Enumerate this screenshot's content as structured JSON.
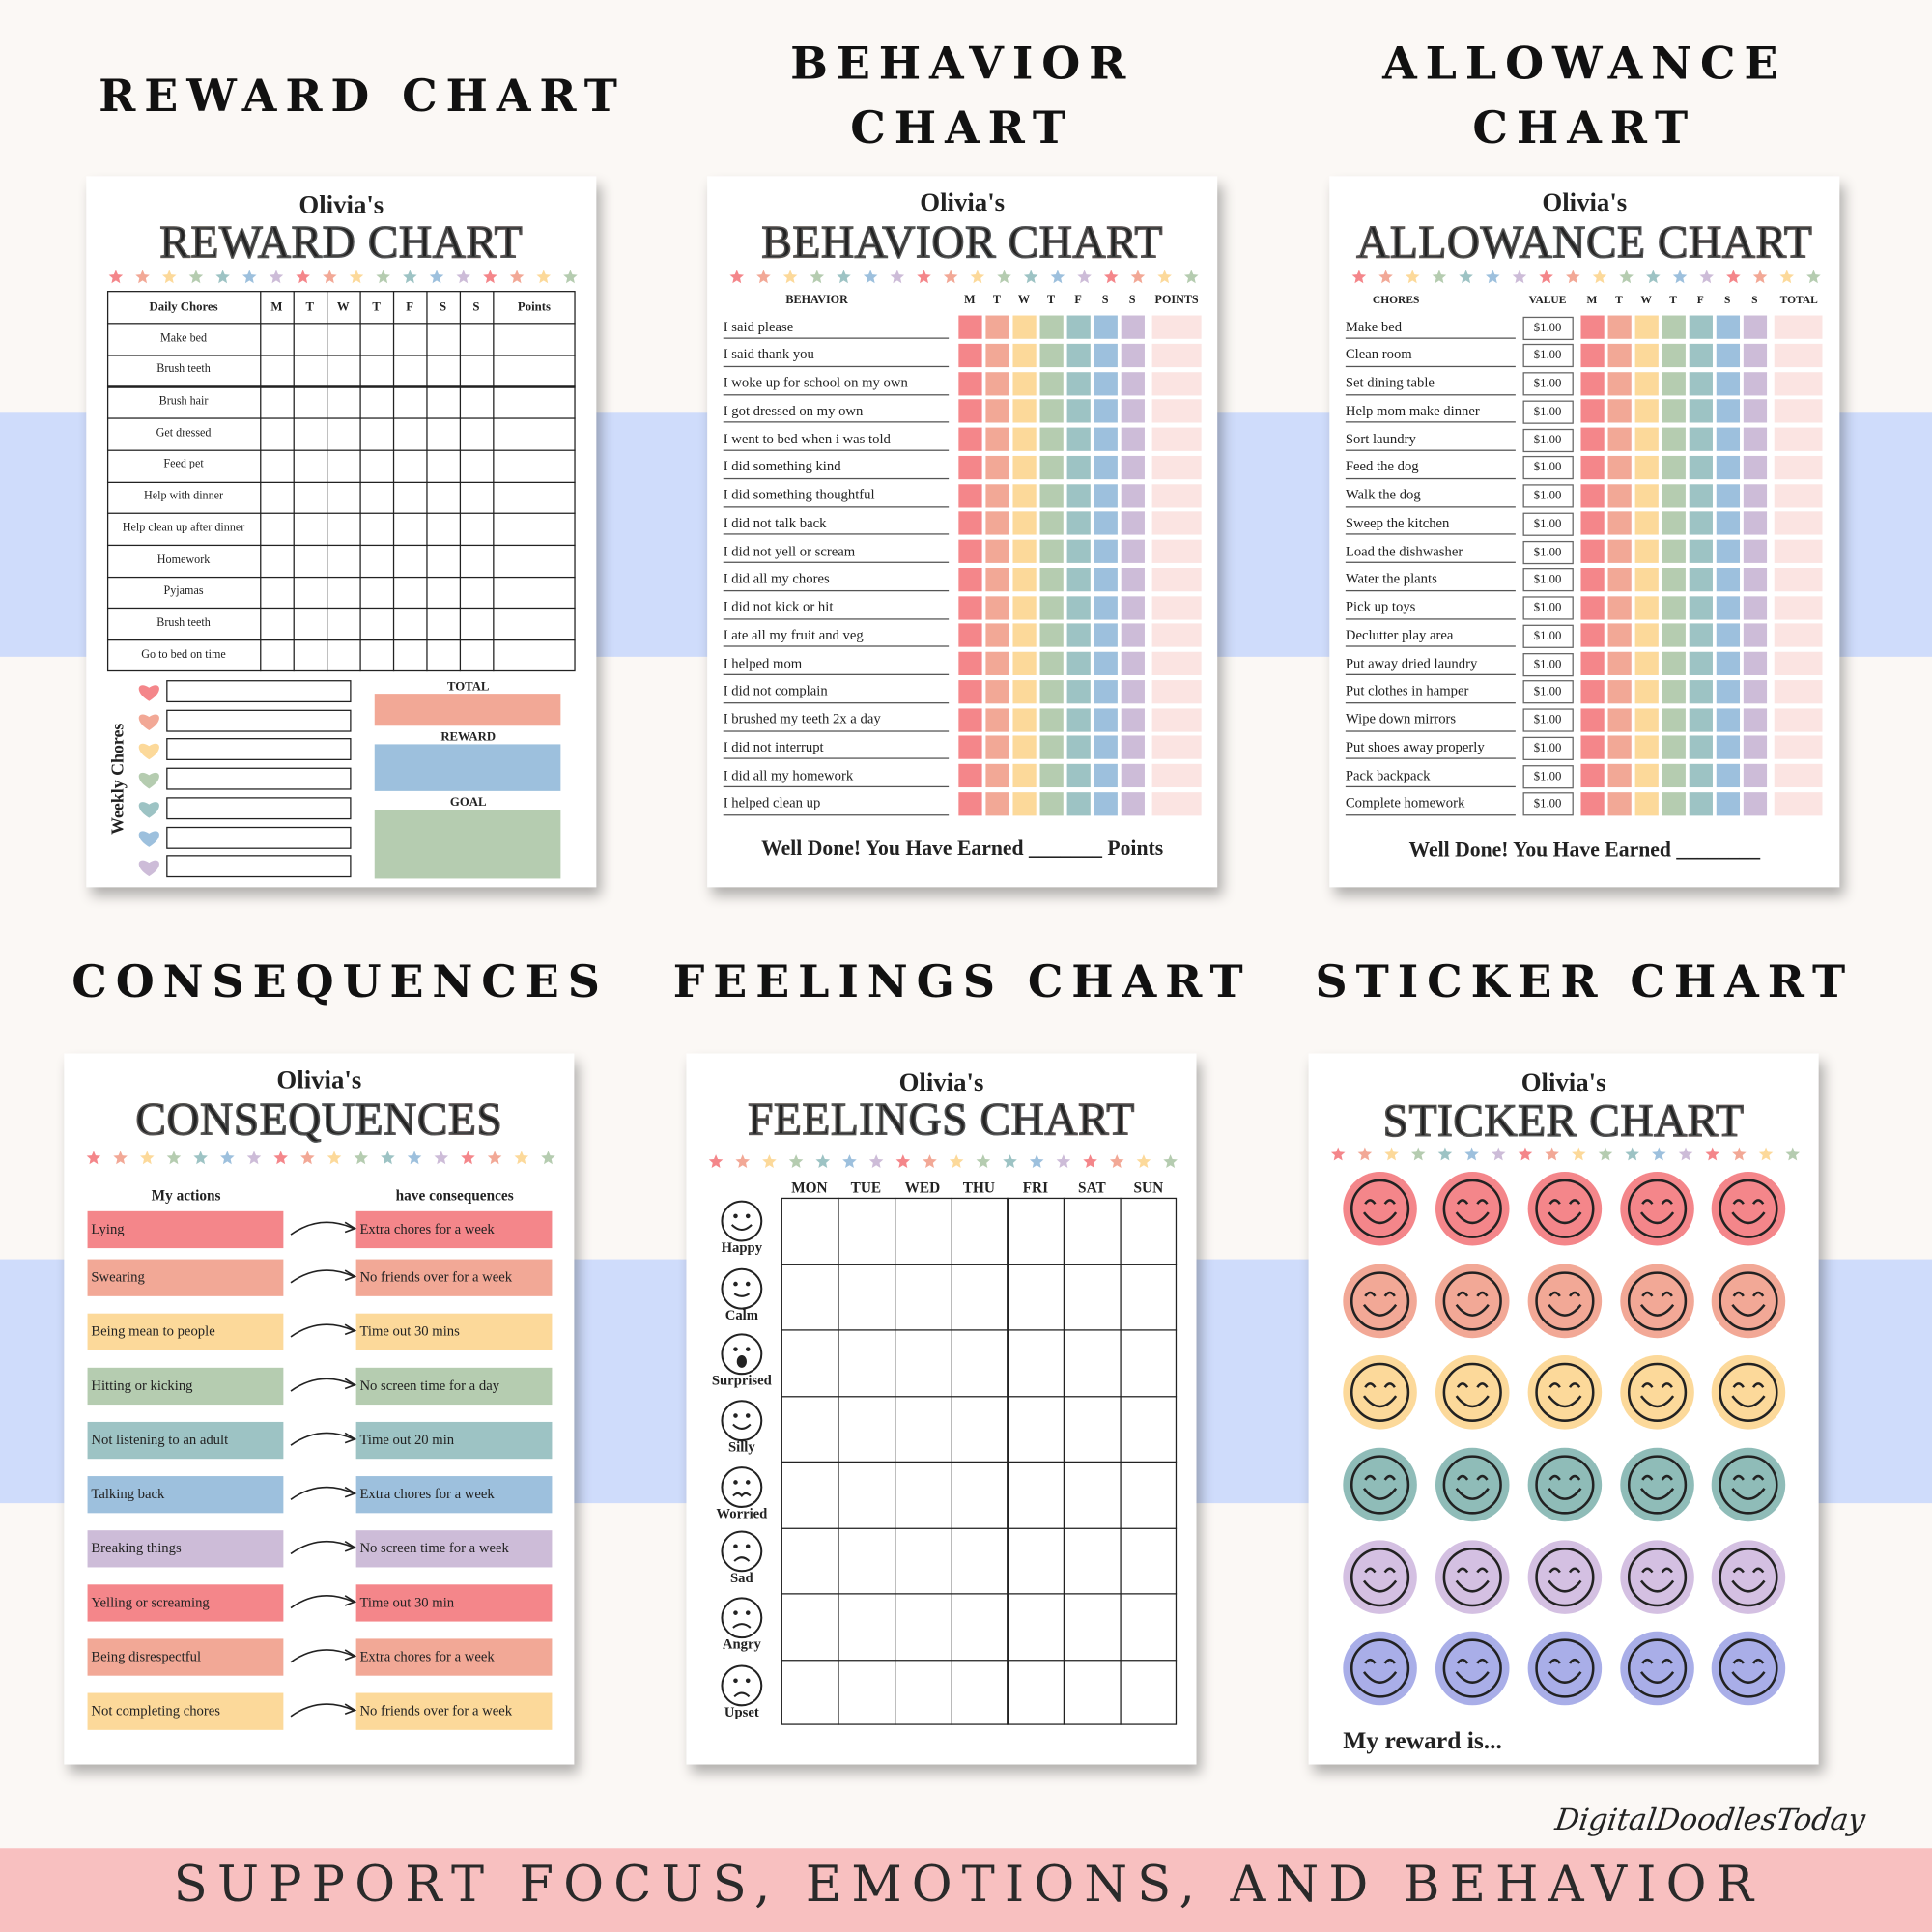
{
  "headings": [
    "REWARD CHART",
    "BEHAVIOR CHART",
    "ALLOWANCE CHART",
    "CONSEQUENCES",
    "FEELINGS CHART",
    "STICKER CHART"
  ],
  "owner": "Olivia's",
  "reward_chart": {
    "title": "REWARD CHART",
    "columns": [
      "Daily Chores",
      "M",
      "T",
      "W",
      "T",
      "F",
      "S",
      "S",
      "Points"
    ],
    "rows": [
      "Make bed",
      "Brush teeth",
      "Brush hair",
      "Get dressed",
      "Feed pet",
      "Help with dinner",
      "Help clean up after dinner",
      "Homework",
      "Pyjamas",
      "Brush teeth",
      "Go to bed on time"
    ],
    "side_label": "Weekly Chores",
    "boxes": [
      "TOTAL",
      "REWARD",
      "GOAL"
    ]
  },
  "behavior_chart": {
    "title": "BEHAVIOR CHART",
    "columns": [
      "BEHAVIOR",
      "M",
      "T",
      "W",
      "T",
      "F",
      "S",
      "S",
      "POINTS"
    ],
    "rows": [
      "I said please",
      "I said thank you",
      "I woke up for school on my own",
      "I got dressed on my own",
      "I went to bed when i was told",
      "I did something kind",
      "I did something thoughtful",
      "I did not talk back",
      "I did not yell or scream",
      "I did all my chores",
      "I did not kick or hit",
      "I ate all my fruit and veg",
      "I helped mom",
      "I did not complain",
      "I brushed my teeth 2x a day",
      "I did not interrupt",
      "I did all my homework",
      "I helped clean up"
    ],
    "footer": "Well Done! You Have Earned _______ Points"
  },
  "allowance_chart": {
    "title": "ALLOWANCE CHART",
    "columns": [
      "CHORES",
      "VALUE",
      "M",
      "T",
      "W",
      "T",
      "F",
      "S",
      "S",
      "TOTAL"
    ],
    "rows": [
      {
        "chore": "Make bed",
        "value": "$1.00"
      },
      {
        "chore": "Clean room",
        "value": "$1.00"
      },
      {
        "chore": "Set dining table",
        "value": "$1.00"
      },
      {
        "chore": "Help mom make dinner",
        "value": "$1.00"
      },
      {
        "chore": "Sort laundry",
        "value": "$1.00"
      },
      {
        "chore": "Feed the dog",
        "value": "$1.00"
      },
      {
        "chore": "Walk the dog",
        "value": "$1.00"
      },
      {
        "chore": "Sweep the kitchen",
        "value": "$1.00"
      },
      {
        "chore": "Load the dishwasher",
        "value": "$1.00"
      },
      {
        "chore": "Water the plants",
        "value": "$1.00"
      },
      {
        "chore": "Pick up toys",
        "value": "$1.00"
      },
      {
        "chore": "Declutter play area",
        "value": "$1.00"
      },
      {
        "chore": "Put away dried laundry",
        "value": "$1.00"
      },
      {
        "chore": "Put clothes in hamper",
        "value": "$1.00"
      },
      {
        "chore": "Wipe down mirrors",
        "value": "$1.00"
      },
      {
        "chore": "Put shoes away properly",
        "value": "$1.00"
      },
      {
        "chore": "Pack backpack",
        "value": "$1.00"
      },
      {
        "chore": "Complete homework",
        "value": "$1.00"
      }
    ],
    "footer": "Well Done! You Have Earned ________"
  },
  "consequences_chart": {
    "title": "CONSEQUENCES",
    "columns": [
      "My actions",
      "have consequences"
    ],
    "rows": [
      {
        "action": "Lying",
        "consequence": "Extra chores for a week"
      },
      {
        "action": "Swearing",
        "consequence": "No friends over for a week"
      },
      {
        "action": "Being mean to people",
        "consequence": "Time out 30 mins"
      },
      {
        "action": "Hitting or kicking",
        "consequence": "No screen time for a day"
      },
      {
        "action": "Not listening to an adult",
        "consequence": "Time out 20 min"
      },
      {
        "action": "Talking back",
        "consequence": "Extra chores for a week"
      },
      {
        "action": "Breaking things",
        "consequence": "No screen time for a week"
      },
      {
        "action": "Yelling or screaming",
        "consequence": "Time out 30 min"
      },
      {
        "action": "Being disrespectful",
        "consequence": "Extra chores for a week"
      },
      {
        "action": "Not completing chores",
        "consequence": "No friends over for a week"
      }
    ]
  },
  "feelings_chart": {
    "title": "FEELINGS CHART",
    "days": [
      "MON",
      "TUE",
      "WED",
      "THU",
      "FRI",
      "SAT",
      "SUN"
    ],
    "feelings": [
      "Happy",
      "Calm",
      "Surprised",
      "Silly",
      "Worried",
      "Sad",
      "Angry",
      "Upset"
    ]
  },
  "sticker_chart": {
    "title": "STICKER CHART",
    "footer": "My reward is..."
  },
  "brand": "DigitalDoodlesToday",
  "banner": "SUPPORT FOCUS, EMOTIONS, AND BEHAVIOR"
}
